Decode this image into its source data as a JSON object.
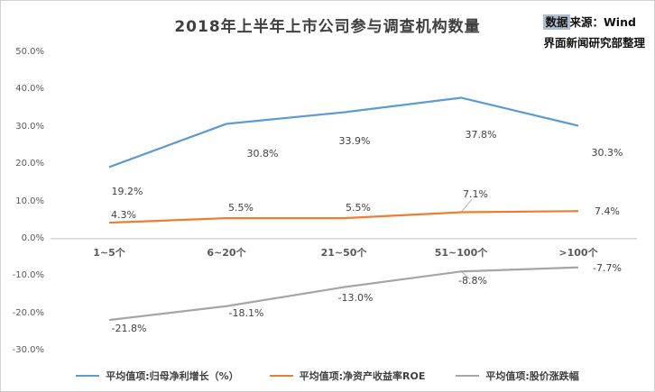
{
  "title": "2018年上半年上市公司参与调查机构数量",
  "source": {
    "highlight": "数据",
    "rest": "来源：Wind",
    "line2": "界面新闻研究部整理"
  },
  "chart_data": {
    "type": "line",
    "title": "2018年上半年上市公司参与调查机构数量",
    "categories": [
      "1~5个",
      "6~20个",
      "21~50个",
      "51~100个",
      ">100个"
    ],
    "series": [
      {
        "name": "平均值项:归母净利增长（%）",
        "color": "#5B9BD5",
        "values": [
          19.2,
          30.8,
          33.9,
          37.8,
          30.3
        ],
        "labels": [
          "19.2%",
          "30.8%",
          "33.9%",
          "37.8%",
          "30.3%"
        ]
      },
      {
        "name": "平均值项:净资产收益率ROE",
        "color": "#ED7D31",
        "values": [
          4.3,
          5.5,
          5.5,
          7.1,
          7.4
        ],
        "labels": [
          "4.3%",
          "5.5%",
          "5.5%",
          "7.1%",
          "7.4%"
        ]
      },
      {
        "name": "平均值项:股价涨跌幅",
        "color": "#A5A5A5",
        "values": [
          -21.8,
          -18.1,
          -13.0,
          -8.8,
          -7.7
        ],
        "labels": [
          "-21.8%",
          "-18.1%",
          "-13.0%",
          "-8.8%",
          "-7.7%"
        ]
      }
    ],
    "yticks": [
      "50.0%",
      "40.0%",
      "30.0%",
      "20.0%",
      "10.0%",
      "0.0%",
      "-10.0%",
      "-20.0%",
      "-30.0%"
    ],
    "ylim": [
      -30,
      50
    ],
    "grid": false,
    "legend_position": "bottom",
    "axis_line_color": "#BFBFBF"
  }
}
